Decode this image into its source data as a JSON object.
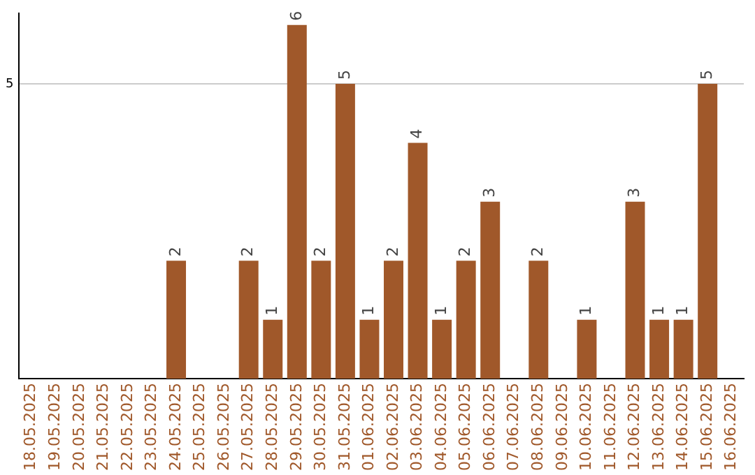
{
  "chart_data": {
    "type": "bar",
    "categories": [
      "18.05.2025",
      "19.05.2025",
      "20.05.2025",
      "21.05.2025",
      "22.05.2025",
      "23.05.2025",
      "24.05.2025",
      "25.05.2025",
      "26.05.2025",
      "27.05.2025",
      "28.05.2025",
      "29.05.2025",
      "30.05.2025",
      "31.05.2025",
      "01.06.2025",
      "02.06.2025",
      "03.06.2025",
      "04.06.2025",
      "05.06.2025",
      "06.06.2025",
      "07.06.2025",
      "08.06.2025",
      "09.06.2025",
      "10.06.2025",
      "11.06.2025",
      "12.06.2025",
      "13.06.2025",
      "14.06.2025",
      "15.06.2025",
      "16.06.2025"
    ],
    "values": [
      0,
      0,
      0,
      0,
      0,
      0,
      2,
      0,
      0,
      2,
      1,
      6,
      2,
      5,
      1,
      2,
      4,
      1,
      2,
      3,
      0,
      2,
      0,
      1,
      0,
      3,
      1,
      1,
      5,
      0
    ],
    "value_labels": [
      null,
      null,
      null,
      null,
      null,
      null,
      "2",
      null,
      null,
      "2",
      "1",
      "6",
      "2",
      "5",
      "1",
      "2",
      "4",
      "1",
      "2",
      "3",
      null,
      "2",
      null,
      "1",
      null,
      "3",
      "1",
      "1",
      "5",
      null
    ],
    "color": "#a0582a",
    "ylim": [
      0,
      6.2
    ],
    "yticks": [
      5
    ],
    "grid": "y",
    "legend": false
  }
}
